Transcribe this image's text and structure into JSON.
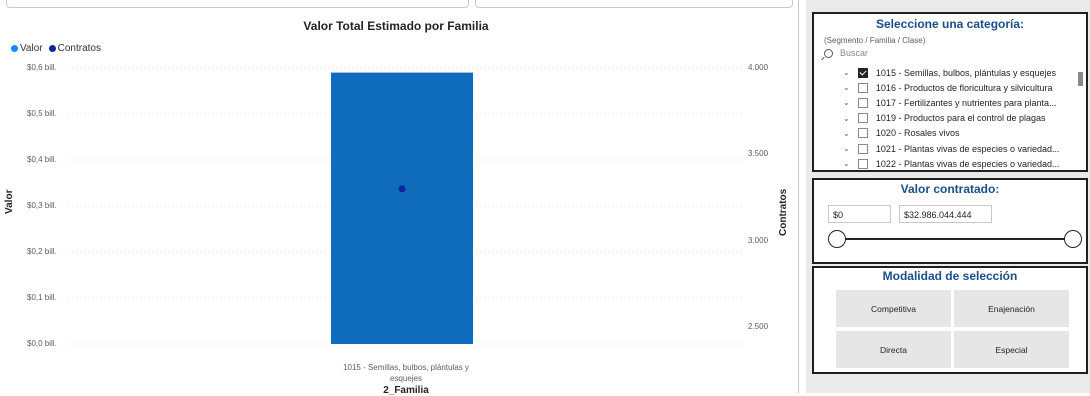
{
  "chart": {
    "title": "Valor Total Estimado por Familia",
    "legend": [
      {
        "label": "Valor",
        "color": "#118dff"
      },
      {
        "label": "Contratos",
        "color": "#12239e"
      }
    ],
    "y_left_label": "Valor",
    "y_right_label": "Contratos",
    "x_label": "2_Familia",
    "y_left_ticks": [
      "$0,6 bill.",
      "$0,5 bill.",
      "$0,4 bill.",
      "$0,3 bill.",
      "$0,2 bill.",
      "$0,1 bill.",
      "$0,0 bill."
    ],
    "y_right_ticks": [
      "4.000",
      "3.500",
      "3.000",
      "2.500"
    ],
    "category_lines": [
      "1015 - Semillas, bulbos, plántulas y",
      "esquejes"
    ],
    "bar_color": "#0f6cbd",
    "point_color": "#12239e"
  },
  "chart_data": {
    "type": "bar",
    "categories": [
      "1015 - Semillas, bulbos, plántulas y esquejes"
    ],
    "series": [
      {
        "name": "Valor",
        "values": [
          0.59
        ],
        "axis": "left",
        "kind": "bar"
      },
      {
        "name": "Contratos",
        "values": [
          3300
        ],
        "axis": "right",
        "kind": "point"
      }
    ],
    "ylim_left": [
      0,
      0.6
    ],
    "ylim_right": [
      2500,
      4000
    ],
    "xlabel": "2_Familia",
    "ylabel": "Valor",
    "ylabel_right": "Contratos",
    "title": "Valor Total Estimado por Familia",
    "grid": true,
    "legend": "top-left"
  },
  "category_slicer": {
    "title": "Seleccione una categoría:",
    "hint": "(Segmento / Familia / Clase)",
    "search_placeholder": "Buscar",
    "items": [
      {
        "label": "1015 - Semillas, bulbos, plántulas y esquejes",
        "checked": true
      },
      {
        "label": "1016 - Productos de floricultura y silvicultura",
        "checked": false
      },
      {
        "label": "1017 - Fertilizantes y nutrientes para planta...",
        "checked": false
      },
      {
        "label": "1019 - Productos para el control de plagas",
        "checked": false
      },
      {
        "label": "1020 - Rosales vivos",
        "checked": false
      },
      {
        "label": "1021 - Plantas vivas de especies o variedad...",
        "checked": false
      },
      {
        "label": "1022 - Plantas vivas de especies o variedad...",
        "checked": false
      }
    ]
  },
  "value_slicer": {
    "title": "Valor contratado:",
    "min_value": "$0",
    "max_value": "$32.986.044.444"
  },
  "modality_slicer": {
    "title": "Modalidad de selección",
    "options": [
      "Competitiva",
      "Enajenación",
      "Directa",
      "Especial"
    ]
  }
}
